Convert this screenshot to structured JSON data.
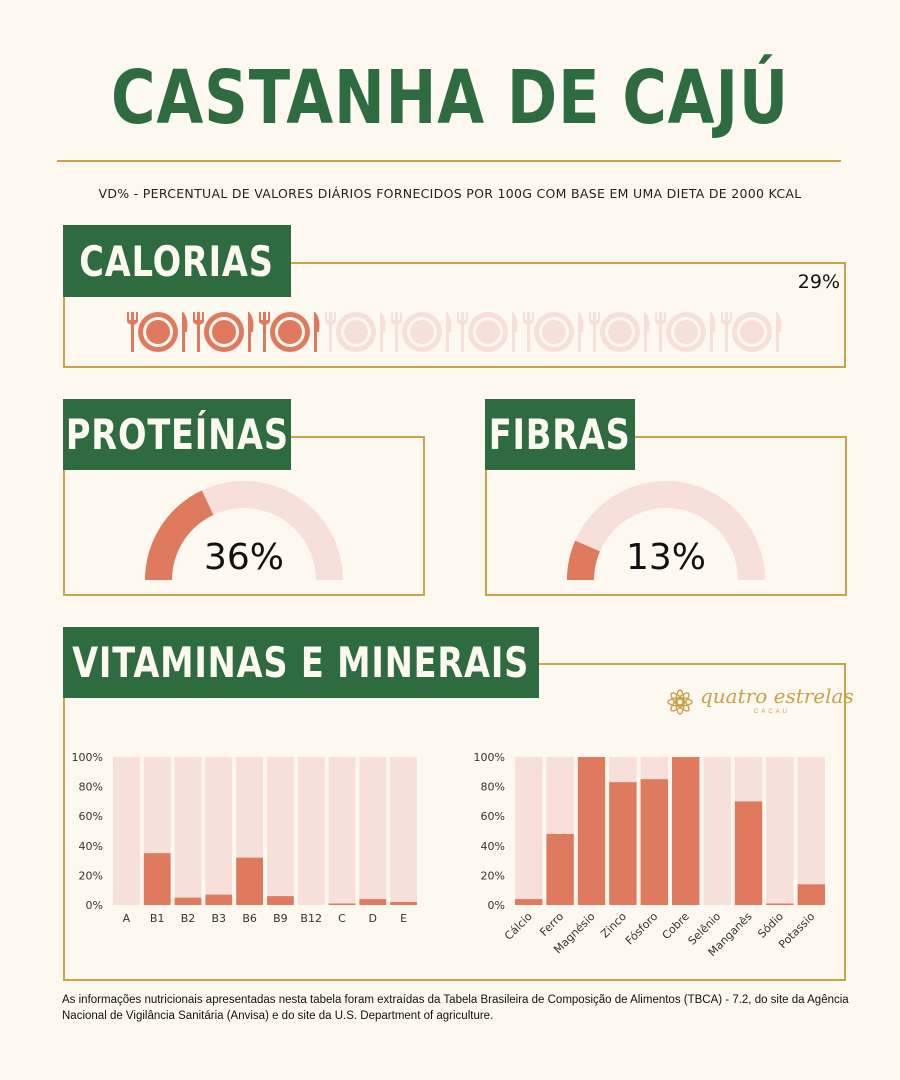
{
  "title": "CASTANHA DE CAJÚ",
  "subtitle": "VD% - PERCENTUAL DE VALORES DIÁRIOS FORNECIDOS POR 100G COM BASE EM UMA DIETA DE 2000 KCAL",
  "colors": {
    "green": "#2e6b3f",
    "gold": "#c9a24a",
    "coral": "#e07a5f",
    "light": "#f7e0da",
    "background": "#fdf9f0"
  },
  "calorias": {
    "label": "CALORIAS",
    "value_label": "29%",
    "value": 29,
    "icon_count": 10,
    "filled_icons": 3
  },
  "proteinas": {
    "label": "PROTEÍNAS",
    "value_label": "36%",
    "value": 36
  },
  "fibras": {
    "label": "FIBRAS",
    "value_label": "13%",
    "value": 13
  },
  "vitaminas": {
    "label": "VITAMINAS E MINERAIS"
  },
  "logo": {
    "text": "quatro estrelas",
    "subtext": "CACAU",
    "icon": "star-flower-icon"
  },
  "chart_data": [
    {
      "type": "bar",
      "categories": [
        "A",
        "B1",
        "B2",
        "B3",
        "B6",
        "B9",
        "B12",
        "C",
        "D",
        "E"
      ],
      "values": [
        0,
        35,
        5,
        7,
        32,
        6,
        0,
        1,
        4,
        2
      ],
      "yticks": [
        "100%",
        "80%",
        "60%",
        "40%",
        "20%",
        "0%"
      ],
      "ylim": [
        0,
        100
      ]
    },
    {
      "type": "bar",
      "categories": [
        "Cálcio",
        "Ferro",
        "Magnésio",
        "Zinco",
        "Fósforo",
        "Cobre",
        "Selênio",
        "Manganês",
        "Sódio",
        "Potassio"
      ],
      "values": [
        4,
        48,
        100,
        83,
        85,
        100,
        0,
        70,
        1,
        14
      ],
      "yticks": [
        "100%",
        "80%",
        "60%",
        "40%",
        "20%",
        "0%"
      ],
      "ylim": [
        0,
        100
      ]
    }
  ],
  "footnote": "As informações nutricionais apresentadas nesta tabela foram extraídas da Tabela Brasileira de Composição de Alimentos (TBCA) - 7.2, do site da Agência Nacional de Vigilância Sanitária (Anvisa) e do site da U.S. Department of agriculture."
}
